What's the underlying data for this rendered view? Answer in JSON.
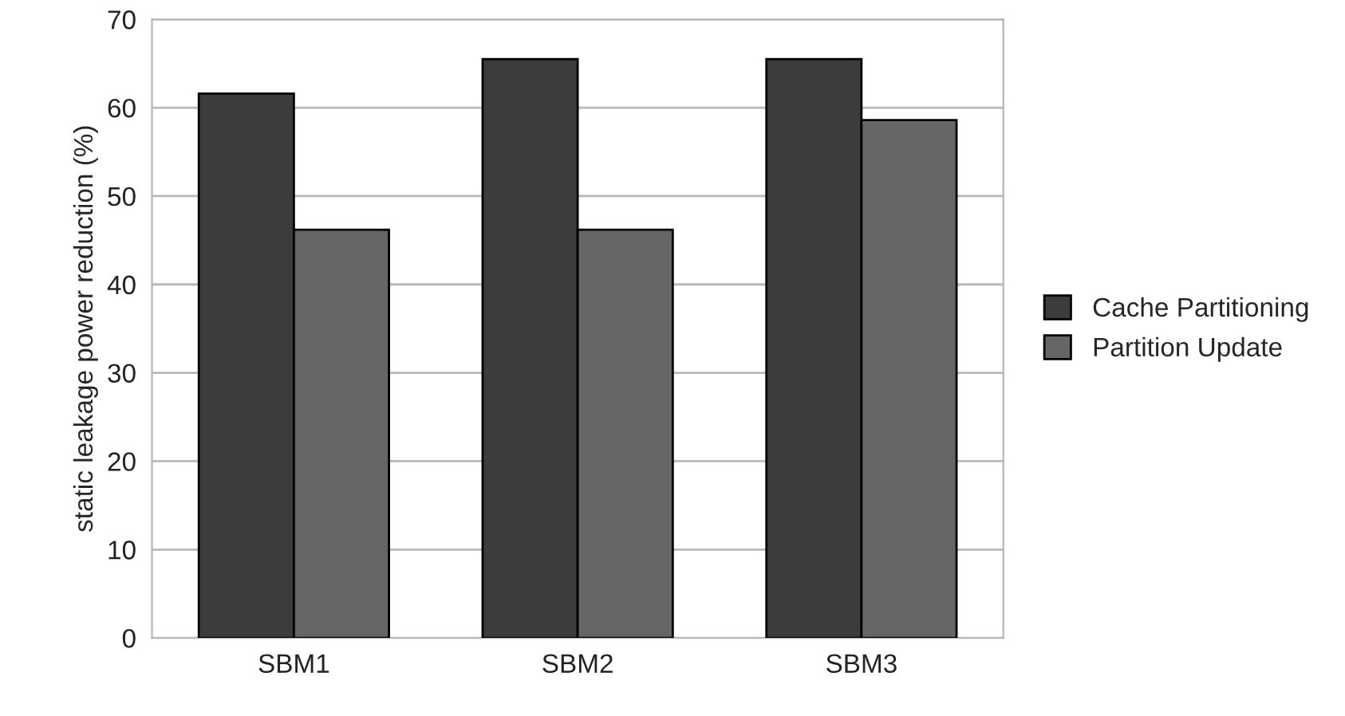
{
  "chart_data": {
    "type": "bar",
    "ylabel": "static leakage power reduction (%)",
    "categories": [
      "SBM1",
      "SBM2",
      "SBM3"
    ],
    "series": [
      {
        "name": "Cache Partitioning",
        "color": "#3c3c3c",
        "values": [
          61.6,
          65.5,
          65.5
        ]
      },
      {
        "name": "Partition Update",
        "color": "#666666",
        "values": [
          46.2,
          46.2,
          58.6
        ]
      }
    ],
    "ylim": [
      0,
      70
    ],
    "yticks": [
      0,
      10,
      20,
      30,
      40,
      50,
      60,
      70
    ],
    "grid": "y",
    "legend": "right"
  }
}
